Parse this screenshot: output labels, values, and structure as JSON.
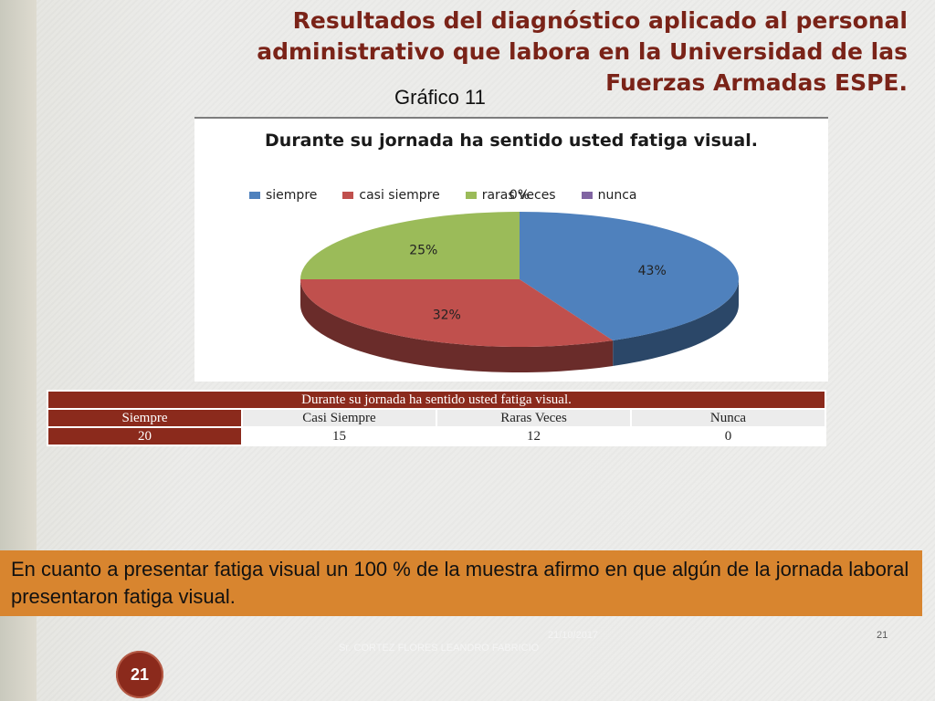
{
  "slide": {
    "title": "Resultados del diagnóstico aplicado al personal administrativo que labora en la Universidad de las Fuerzas Armadas ESPE.",
    "caption": "Gráfico 11",
    "conclusion": "En cuanto a presentar fatiga visual un 100 % de la muestra afirmo en que algún de la jornada laboral presentaron fatiga visual.",
    "footer": {
      "date": "21/10/2017",
      "author": "Sr. CORTEZ FLORES LEANDRO FABRICIO",
      "page": "21",
      "badge": "21"
    }
  },
  "chart_data": {
    "type": "pie",
    "title": "Durante su jornada ha sentido usted fatiga visual.",
    "legend_position": "top",
    "categories": [
      "siempre",
      "casi siempre",
      "raras veces",
      "nunca"
    ],
    "values": [
      43,
      32,
      25,
      0
    ],
    "labels": [
      "43%",
      "32%",
      "25%",
      "0%"
    ],
    "colors": [
      "#4f81bd",
      "#c0504d",
      "#9bbb59",
      "#8064a2"
    ]
  },
  "table": {
    "title": "Durante su jornada ha sentido usted fatiga visual.",
    "headers": [
      "Siempre",
      "Casi Siempre",
      "Raras Veces",
      "Nunca"
    ],
    "values": [
      "20",
      "15",
      "12",
      "0"
    ]
  }
}
